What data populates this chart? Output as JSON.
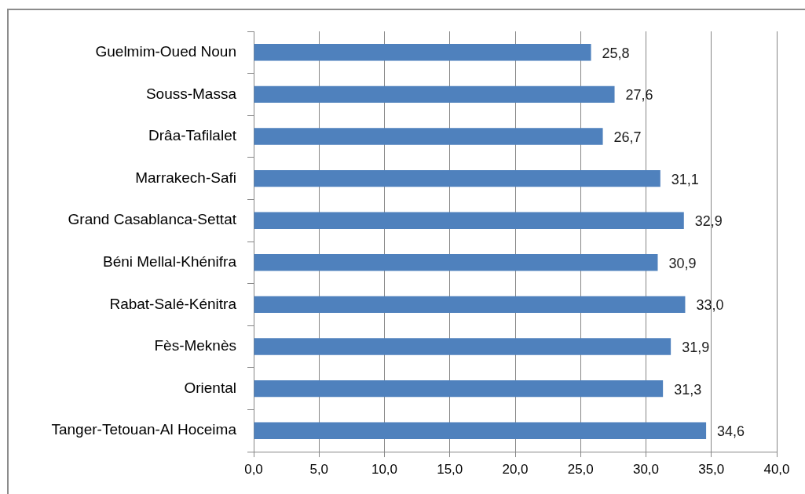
{
  "chart_data": {
    "type": "bar",
    "orientation": "horizontal",
    "categories": [
      "Guelmim-Oued Noun",
      "Souss-Massa",
      "Drâa-Tafilalet",
      "Marrakech-Safi",
      "Grand Casablanca-Settat",
      "Béni Mellal-Khénifra",
      "Rabat-Salé-Kénitra",
      "Fès-Meknès",
      "Oriental",
      "Tanger-Tetouan-Al Hoceima"
    ],
    "values": [
      25.8,
      27.6,
      26.7,
      31.1,
      32.9,
      30.9,
      33.0,
      31.9,
      31.3,
      34.6
    ],
    "value_labels": [
      "25,8",
      "27,6",
      "26,7",
      "31,1",
      "32,9",
      "30,9",
      "33,0",
      "31,9",
      "31,3",
      "34,6"
    ],
    "color": "#4f81bd",
    "xlim": [
      0,
      40
    ],
    "xticks": [
      {
        "value": 0,
        "label": "0,0"
      },
      {
        "value": 5,
        "label": "5,0"
      },
      {
        "value": 10,
        "label": "10,0"
      },
      {
        "value": 15,
        "label": "15,0"
      },
      {
        "value": 20,
        "label": "20,0"
      },
      {
        "value": 25,
        "label": "25,0"
      },
      {
        "value": 30,
        "label": "30,0"
      },
      {
        "value": 35,
        "label": "35,0"
      },
      {
        "value": 40,
        "label": "40,0"
      }
    ],
    "grid": "x"
  }
}
